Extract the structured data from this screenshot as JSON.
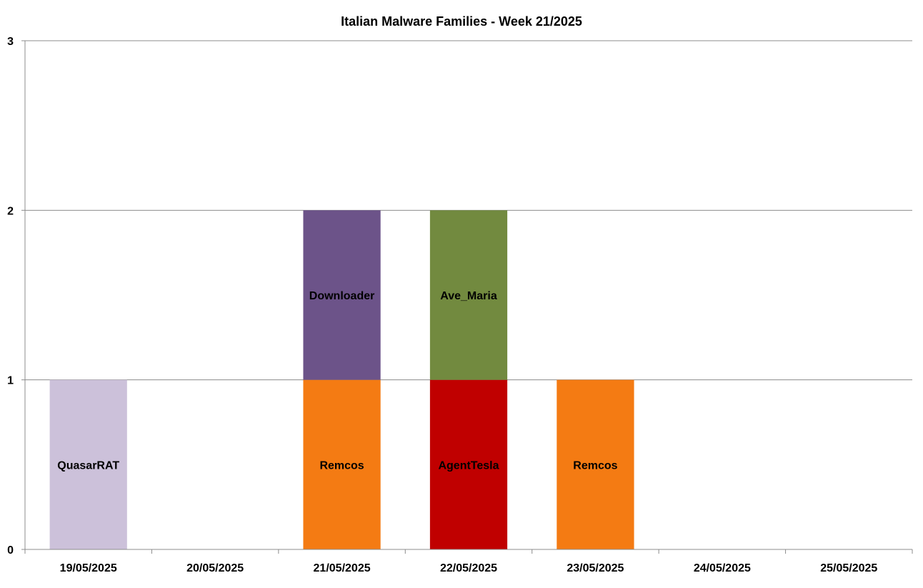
{
  "chart_data": {
    "type": "bar",
    "stacked": true,
    "title": "Italian Malware Families - Week 21/2025",
    "xlabel": "",
    "ylabel": "",
    "ylim": [
      0,
      3
    ],
    "yticks": [
      "0",
      "1",
      "2",
      "3"
    ],
    "grid": true,
    "legend": "none",
    "categories": [
      "19/05/2025",
      "20/05/2025",
      "21/05/2025",
      "22/05/2025",
      "23/05/2025",
      "24/05/2025",
      "25/05/2025"
    ],
    "series": [
      {
        "name": "QuasarRAT",
        "color": "#ccc1da",
        "values": [
          1,
          0,
          0,
          0,
          0,
          0,
          0
        ]
      },
      {
        "name": "Remcos",
        "color": "#f47b13",
        "values": [
          0,
          0,
          1,
          0,
          1,
          0,
          0
        ]
      },
      {
        "name": "AgentTesla",
        "color": "#c00000",
        "values": [
          0,
          0,
          0,
          1,
          0,
          0,
          0
        ]
      },
      {
        "name": "Downloader",
        "color": "#6c5389",
        "values": [
          0,
          0,
          1,
          0,
          0,
          0,
          0
        ]
      },
      {
        "name": "Ave_Maria",
        "color": "#728a3f",
        "values": [
          0,
          0,
          0,
          1,
          0,
          0,
          0
        ]
      }
    ]
  }
}
